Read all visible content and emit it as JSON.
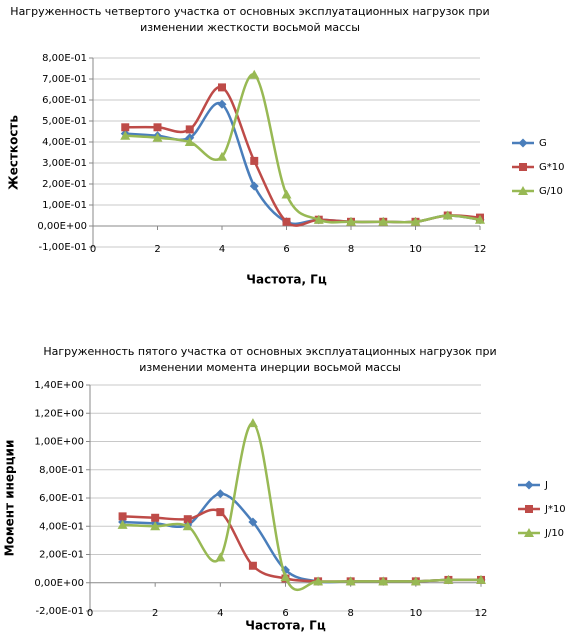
{
  "chart_data": [
    {
      "type": "line",
      "title": [
        "Нагруженность четвертого участка  от основных эксплуатационных  нагрузок при",
        "изменении жесткости  восьмой массы"
      ],
      "x_label": "Частота, Гц",
      "y_label": "Жесткость",
      "x": [
        1,
        2,
        3,
        4,
        5,
        6,
        7,
        8,
        9,
        10,
        11,
        12
      ],
      "xlim": [
        0,
        12
      ],
      "xticks": [
        0,
        2,
        4,
        6,
        8,
        10,
        12
      ],
      "ylim": [
        -0.1,
        0.8
      ],
      "yticks": [
        {
          "value": -0.1,
          "label": "-1,00E-01"
        },
        {
          "value": 0,
          "label": "0,00E+00"
        },
        {
          "value": 0.1,
          "label": "1,00E-01"
        },
        {
          "value": 0.2,
          "label": "2,00E-01"
        },
        {
          "value": 0.3,
          "label": "3,00E-01"
        },
        {
          "value": 0.4,
          "label": "4,00E-01"
        },
        {
          "value": 0.5,
          "label": "5,00E-01"
        },
        {
          "value": 0.6,
          "label": "6,00E-01"
        },
        {
          "value": 0.7,
          "label": "7,00E-01"
        },
        {
          "value": 0.8,
          "label": "8,00E-01"
        }
      ],
      "grid": true,
      "smooth": true,
      "legend": "right",
      "series": [
        {
          "name": "G",
          "color": "#4a7ebb",
          "marker": "diamond",
          "values": [
            0.44,
            0.43,
            0.42,
            0.58,
            0.19,
            0.02,
            0.03,
            0.02,
            0.02,
            0.02,
            0.05,
            0.03
          ]
        },
        {
          "name": "G*10",
          "color": "#be4b48",
          "marker": "square",
          "values": [
            0.47,
            0.47,
            0.46,
            0.66,
            0.31,
            0.02,
            0.03,
            0.02,
            0.02,
            0.02,
            0.05,
            0.04
          ]
        },
        {
          "name": "G/10",
          "color": "#98b954",
          "marker": "triangle",
          "values": [
            0.43,
            0.42,
            0.4,
            0.33,
            0.72,
            0.15,
            0.03,
            0.02,
            0.02,
            0.02,
            0.05,
            0.03
          ]
        }
      ]
    },
    {
      "type": "line",
      "title": [
        "Нагруженность  пятого участка  от основных эксплуатационных  нагрузок при",
        "изменении момента инерции восьмой массы"
      ],
      "x_label": "Частота, Гц",
      "y_label": "Момент инерции",
      "x": [
        1,
        2,
        3,
        4,
        5,
        6,
        7,
        8,
        9,
        10,
        11,
        12
      ],
      "xlim": [
        0,
        12
      ],
      "xticks": [
        0,
        2,
        4,
        6,
        8,
        10,
        12
      ],
      "ylim": [
        -0.2,
        1.4
      ],
      "yticks": [
        {
          "value": -0.2,
          "label": "-2,00E-01"
        },
        {
          "value": 0,
          "label": "0,00E+00"
        },
        {
          "value": 0.2,
          "label": "2,00E-01"
        },
        {
          "value": 0.4,
          "label": "4,00E-01"
        },
        {
          "value": 0.6,
          "label": "6,00E-01"
        },
        {
          "value": 0.8,
          "label": "8,00E-01"
        },
        {
          "value": 1.0,
          "label": "1,00E+00"
        },
        {
          "value": 1.2,
          "label": "1,20E+00"
        },
        {
          "value": 1.4,
          "label": "1,40E+00"
        }
      ],
      "grid": true,
      "smooth": true,
      "legend": "right",
      "series": [
        {
          "name": "J",
          "color": "#4a7ebb",
          "marker": "diamond",
          "values": [
            0.43,
            0.42,
            0.41,
            0.63,
            0.43,
            0.09,
            0.01,
            0.01,
            0.01,
            0.01,
            0.02,
            0.02
          ]
        },
        {
          "name": "J*10",
          "color": "#be4b48",
          "marker": "square",
          "values": [
            0.47,
            0.46,
            0.45,
            0.5,
            0.12,
            0.03,
            0.01,
            0.01,
            0.01,
            0.01,
            0.02,
            0.02
          ]
        },
        {
          "name": "J/10",
          "color": "#98b954",
          "marker": "triangle",
          "values": [
            0.41,
            0.4,
            0.4,
            0.18,
            1.13,
            0.04,
            0.01,
            0.01,
            0.01,
            0.01,
            0.02,
            0.02
          ]
        }
      ]
    }
  ]
}
